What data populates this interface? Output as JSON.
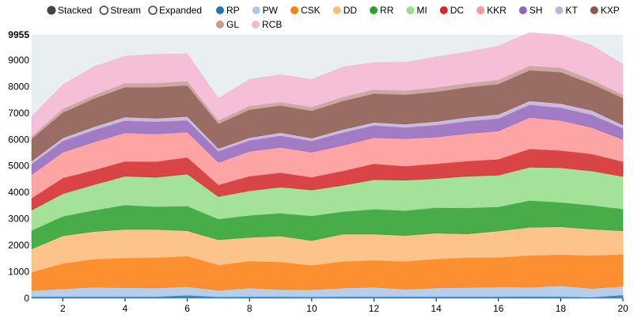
{
  "chart_data": {
    "type": "area",
    "mode_options": [
      {
        "label": "Stacked",
        "selected": true
      },
      {
        "label": "Stream",
        "selected": false
      },
      {
        "label": "Expanded",
        "selected": false
      }
    ],
    "x": [
      1,
      2,
      3,
      4,
      5,
      6,
      7,
      8,
      9,
      10,
      11,
      12,
      13,
      14,
      15,
      16,
      17,
      18,
      19,
      20
    ],
    "xticks": [
      2,
      4,
      6,
      8,
      10,
      12,
      14,
      16,
      18,
      20
    ],
    "yticks": [
      0,
      1000,
      2000,
      3000,
      4000,
      5000,
      6000,
      7000,
      8000,
      9000
    ],
    "ymax_label": "9955",
    "ylim": [
      0,
      9955
    ],
    "xlim": [
      1,
      20
    ],
    "series": [
      {
        "name": "RP",
        "color": "#1f77b4",
        "values": [
          60,
          60,
          60,
          60,
          60,
          110,
          50,
          60,
          60,
          50,
          60,
          60,
          60,
          60,
          60,
          60,
          70,
          60,
          40,
          120
        ]
      },
      {
        "name": "PW",
        "color": "#aec7e8",
        "values": [
          230,
          300,
          360,
          340,
          330,
          330,
          250,
          330,
          270,
          270,
          330,
          360,
          280,
          330,
          350,
          370,
          350,
          410,
          330,
          330
        ]
      },
      {
        "name": "CSK",
        "color": "#ff7f0e",
        "values": [
          690,
          950,
          1050,
          1120,
          1140,
          1150,
          950,
          1010,
          1040,
          920,
          1000,
          1010,
          1050,
          1090,
          1120,
          1110,
          1190,
          1170,
          1240,
          1200
        ]
      },
      {
        "name": "DD",
        "color": "#ffbb78",
        "values": [
          880,
          1050,
          1050,
          1080,
          1070,
          960,
          960,
          900,
          980,
          940,
          1030,
          990,
          980,
          980,
          900,
          1000,
          1070,
          1060,
          1000,
          900
        ]
      },
      {
        "name": "RR",
        "color": "#2ca02c",
        "values": [
          700,
          730,
          800,
          920,
          860,
          930,
          780,
          830,
          860,
          930,
          850,
          940,
          940,
          960,
          980,
          910,
          1010,
          920,
          900,
          820
        ]
      },
      {
        "name": "MI",
        "color": "#98df8a",
        "values": [
          770,
          860,
          970,
          1090,
          1110,
          1210,
          850,
          930,
          990,
          980,
          1000,
          1120,
          1150,
          1100,
          1200,
          1200,
          1260,
          1310,
          1300,
          1230
        ]
      },
      {
        "name": "DC",
        "color": "#d62728",
        "values": [
          450,
          590,
          550,
          560,
          590,
          630,
          440,
          550,
          540,
          480,
          540,
          600,
          530,
          560,
          570,
          600,
          690,
          650,
          640,
          560
        ]
      },
      {
        "name": "KKR",
        "color": "#ff9896",
        "values": [
          890,
          980,
          1060,
          1080,
          1050,
          960,
          850,
          940,
          960,
          950,
          970,
          990,
          1040,
          1010,
          1040,
          1070,
          1190,
          1140,
          1000,
          840
        ]
      },
      {
        "name": "SH",
        "color": "#9467bd",
        "values": [
          400,
          420,
          450,
          460,
          460,
          440,
          420,
          410,
          440,
          420,
          480,
          460,
          420,
          450,
          470,
          470,
          480,
          480,
          480,
          420
        ]
      },
      {
        "name": "KT",
        "color": "#c5b0d5",
        "values": [
          110,
          120,
          130,
          140,
          130,
          150,
          110,
          110,
          120,
          110,
          120,
          120,
          130,
          140,
          150,
          160,
          150,
          160,
          170,
          130
        ]
      },
      {
        "name": "KXP",
        "color": "#8c564b",
        "values": [
          840,
          950,
          1060,
          1120,
          1170,
          1170,
          930,
          1050,
          1020,
          1030,
          1070,
          1080,
          1110,
          1120,
          1130,
          1140,
          1150,
          1180,
          1000,
          1010
        ]
      },
      {
        "name": "GL",
        "color": "#c49c94",
        "values": [
          100,
          140,
          130,
          150,
          160,
          160,
          120,
          140,
          130,
          140,
          150,
          150,
          150,
          160,
          150,
          160,
          170,
          170,
          150,
          130
        ]
      },
      {
        "name": "RCB",
        "color": "#f7b6d2",
        "values": [
          750,
          920,
          1080,
          1030,
          1090,
          1040,
          850,
          1010,
          1040,
          1050,
          1140,
          1030,
          1080,
          1160,
          1190,
          1280,
          1260,
          1240,
          1310,
          1160
        ]
      }
    ]
  }
}
